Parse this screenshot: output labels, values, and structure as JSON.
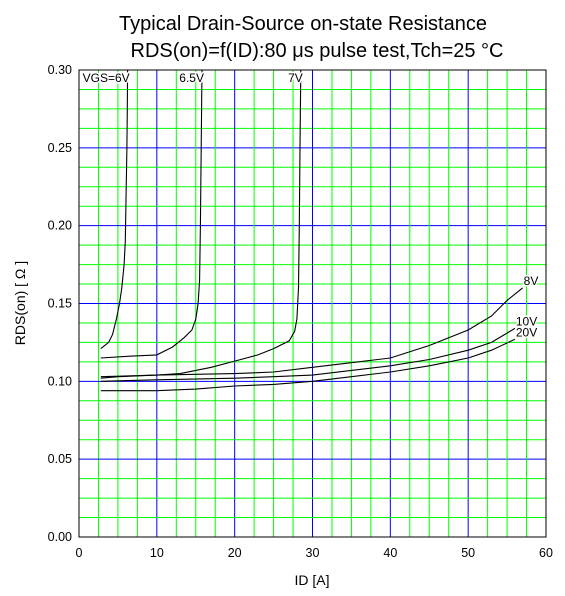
{
  "chart_data": {
    "type": "line",
    "title": "Typical Drain-Source on-state Resistance",
    "subtitle": "RDS(on)=f(ID):80  μs pulse test,Tch=25  °C",
    "xlabel": "ID [A]",
    "ylabel": "RDS(on) [  Ω ]",
    "xlim": [
      0,
      60
    ],
    "ylim": [
      0.0,
      0.3
    ],
    "x_ticks": [
      0,
      10,
      20,
      30,
      40,
      50,
      60
    ],
    "y_ticks": [
      0.0,
      0.05,
      0.1,
      0.15,
      0.2,
      0.25,
      0.3
    ],
    "x_tick_labels": [
      "0",
      "10",
      "20",
      "30",
      "40",
      "50",
      "60"
    ],
    "y_tick_labels": [
      "0.00",
      "0.05",
      "0.10",
      "0.15",
      "0.20",
      "0.25",
      "0.30"
    ],
    "grid": true,
    "grid_colors": {
      "minor": "#00ff00",
      "major": "#0000ff"
    },
    "plot_background": "#ffffff",
    "line_color": "#000000",
    "series": [
      {
        "name": "VGS=6V",
        "points": [
          [
            2.8,
            0.121
          ],
          [
            3.8,
            0.125
          ],
          [
            4.3,
            0.13
          ],
          [
            4.8,
            0.14
          ],
          [
            5.2,
            0.15
          ],
          [
            5.5,
            0.16
          ],
          [
            5.8,
            0.175
          ],
          [
            5.95,
            0.19
          ],
          [
            6.05,
            0.22
          ],
          [
            6.15,
            0.25
          ],
          [
            6.2,
            0.275
          ],
          [
            6.25,
            0.3
          ]
        ]
      },
      {
        "name": "6.5V",
        "points": [
          [
            2.8,
            0.115
          ],
          [
            6,
            0.116
          ],
          [
            10,
            0.117
          ],
          [
            12,
            0.122
          ],
          [
            13.5,
            0.128
          ],
          [
            14.5,
            0.133
          ],
          [
            15.0,
            0.14
          ],
          [
            15.3,
            0.15
          ],
          [
            15.5,
            0.165
          ],
          [
            15.6,
            0.2
          ],
          [
            15.7,
            0.25
          ],
          [
            15.8,
            0.3
          ]
        ]
      },
      {
        "name": "7V",
        "points": [
          [
            2.8,
            0.102
          ],
          [
            5,
            0.103
          ],
          [
            10,
            0.104
          ],
          [
            13,
            0.105
          ],
          [
            15,
            0.107
          ],
          [
            17,
            0.109
          ],
          [
            20,
            0.113
          ],
          [
            23,
            0.117
          ],
          [
            25,
            0.121
          ],
          [
            27,
            0.126
          ],
          [
            27.7,
            0.132
          ],
          [
            28.0,
            0.14
          ],
          [
            28.2,
            0.16
          ],
          [
            28.3,
            0.2
          ],
          [
            28.4,
            0.25
          ],
          [
            28.5,
            0.3
          ]
        ]
      },
      {
        "name": "8V",
        "points": [
          [
            2.8,
            0.103
          ],
          [
            10,
            0.104
          ],
          [
            20,
            0.105
          ],
          [
            25,
            0.106
          ],
          [
            30,
            0.109
          ],
          [
            35,
            0.112
          ],
          [
            40,
            0.115
          ],
          [
            45,
            0.123
          ],
          [
            50,
            0.133
          ],
          [
            53,
            0.142
          ],
          [
            55,
            0.152
          ],
          [
            57,
            0.16
          ]
        ]
      },
      {
        "name": "10V",
        "points": [
          [
            2.8,
            0.1
          ],
          [
            10,
            0.101
          ],
          [
            20,
            0.102
          ],
          [
            25,
            0.103
          ],
          [
            30,
            0.104
          ],
          [
            35,
            0.107
          ],
          [
            40,
            0.11
          ],
          [
            45,
            0.114
          ],
          [
            50,
            0.12
          ],
          [
            53,
            0.125
          ],
          [
            56,
            0.134
          ]
        ]
      },
      {
        "name": "20V",
        "points": [
          [
            2.8,
            0.094
          ],
          [
            10,
            0.094
          ],
          [
            15,
            0.095
          ],
          [
            20,
            0.097
          ],
          [
            25,
            0.098
          ],
          [
            30,
            0.1
          ],
          [
            35,
            0.103
          ],
          [
            40,
            0.106
          ],
          [
            45,
            0.11
          ],
          [
            50,
            0.115
          ],
          [
            53,
            0.12
          ],
          [
            56,
            0.127
          ]
        ]
      }
    ]
  }
}
